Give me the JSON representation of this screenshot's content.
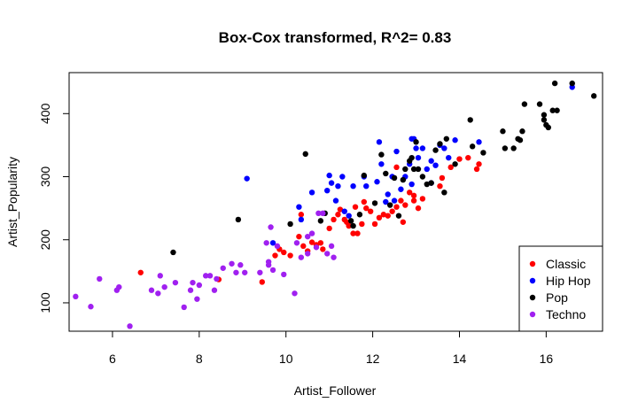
{
  "chart_data": {
    "type": "scatter",
    "title": "Box-Cox transformed, R^2= 0.83",
    "xlabel": "Artist_Follower",
    "ylabel": "Artist_Popularity",
    "xlim": [
      5,
      17.3
    ],
    "ylim": [
      55,
      465
    ],
    "xticks": [
      6,
      8,
      10,
      12,
      14,
      16
    ],
    "yticks": [
      100,
      200,
      300,
      400
    ],
    "grid": false,
    "legend_position": "bottom-right",
    "series": [
      {
        "name": "Classic",
        "color": "#ff0000",
        "points": [
          [
            6.65,
            148
          ],
          [
            8.45,
            137
          ],
          [
            9.45,
            133
          ],
          [
            9.75,
            175
          ],
          [
            9.85,
            185
          ],
          [
            9.95,
            180
          ],
          [
            10.1,
            175
          ],
          [
            10.3,
            205
          ],
          [
            10.4,
            190
          ],
          [
            10.5,
            182
          ],
          [
            10.6,
            196
          ],
          [
            10.7,
            192
          ],
          [
            10.8,
            195
          ],
          [
            10.85,
            185
          ],
          [
            11.1,
            232
          ],
          [
            11.2,
            240
          ],
          [
            11.25,
            248
          ],
          [
            11.35,
            232
          ],
          [
            11.45,
            222
          ],
          [
            11.55,
            210
          ],
          [
            11.65,
            210
          ],
          [
            11.75,
            225
          ],
          [
            11.85,
            250
          ],
          [
            11.95,
            245
          ],
          [
            12.05,
            225
          ],
          [
            12.15,
            235
          ],
          [
            12.25,
            240
          ],
          [
            12.35,
            238
          ],
          [
            12.45,
            245
          ],
          [
            12.55,
            252
          ],
          [
            12.65,
            262
          ],
          [
            12.75,
            255
          ],
          [
            12.85,
            275
          ],
          [
            12.95,
            270
          ],
          [
            13.05,
            250
          ],
          [
            13.15,
            265
          ],
          [
            12.55,
            315
          ],
          [
            13.55,
            285
          ],
          [
            13.8,
            315
          ],
          [
            14.0,
            328
          ],
          [
            14.2,
            330
          ],
          [
            14.4,
            312
          ],
          [
            14.45,
            320
          ],
          [
            11.6,
            252
          ],
          [
            11.8,
            260
          ],
          [
            10.35,
            240
          ],
          [
            12.95,
            262
          ],
          [
            11.0,
            218
          ],
          [
            11.4,
            228
          ],
          [
            12.7,
            228
          ],
          [
            13.6,
            298
          ]
        ]
      },
      {
        "name": "Hip Hop",
        "color": "#0000ff",
        "points": [
          [
            9.1,
            297
          ],
          [
            9.7,
            195
          ],
          [
            10.3,
            252
          ],
          [
            10.35,
            232
          ],
          [
            10.6,
            275
          ],
          [
            10.95,
            278
          ],
          [
            11.0,
            302
          ],
          [
            11.05,
            290
          ],
          [
            11.2,
            285
          ],
          [
            11.3,
            300
          ],
          [
            11.35,
            245
          ],
          [
            11.45,
            238
          ],
          [
            11.55,
            285
          ],
          [
            11.8,
            300
          ],
          [
            11.85,
            285
          ],
          [
            12.1,
            292
          ],
          [
            12.15,
            355
          ],
          [
            12.2,
            320
          ],
          [
            12.35,
            272
          ],
          [
            12.45,
            300
          ],
          [
            12.55,
            340
          ],
          [
            12.65,
            280
          ],
          [
            12.75,
            300
          ],
          [
            12.85,
            320
          ],
          [
            12.9,
            360
          ],
          [
            12.95,
            360
          ],
          [
            13.0,
            345
          ],
          [
            13.05,
            330
          ],
          [
            13.15,
            345
          ],
          [
            13.25,
            312
          ],
          [
            13.35,
            325
          ],
          [
            13.45,
            318
          ],
          [
            13.55,
            350
          ],
          [
            13.65,
            345
          ],
          [
            13.75,
            330
          ],
          [
            13.9,
            358
          ],
          [
            12.5,
            262
          ],
          [
            12.9,
            288
          ],
          [
            13.35,
            290
          ],
          [
            16.6,
            442
          ],
          [
            14.45,
            355
          ],
          [
            12.3,
            260
          ],
          [
            11.15,
            262
          ]
        ]
      },
      {
        "name": "Pop",
        "color": "#000000",
        "points": [
          [
            7.4,
            180
          ],
          [
            8.9,
            232
          ],
          [
            10.1,
            225
          ],
          [
            10.45,
            336
          ],
          [
            10.9,
            242
          ],
          [
            11.5,
            230
          ],
          [
            11.55,
            222
          ],
          [
            11.7,
            240
          ],
          [
            11.8,
            302
          ],
          [
            12.05,
            258
          ],
          [
            12.2,
            335
          ],
          [
            12.4,
            255
          ],
          [
            12.5,
            298
          ],
          [
            12.7,
            295
          ],
          [
            12.75,
            312
          ],
          [
            12.85,
            325
          ],
          [
            12.95,
            312
          ],
          [
            13.05,
            312
          ],
          [
            13.15,
            300
          ],
          [
            13.25,
            288
          ],
          [
            13.35,
            290
          ],
          [
            13.45,
            342
          ],
          [
            13.55,
            352
          ],
          [
            13.65,
            275
          ],
          [
            13.7,
            360
          ],
          [
            13.9,
            320
          ],
          [
            14.25,
            390
          ],
          [
            14.55,
            338
          ],
          [
            15.0,
            372
          ],
          [
            15.05,
            345
          ],
          [
            15.25,
            345
          ],
          [
            15.35,
            360
          ],
          [
            15.4,
            358
          ],
          [
            15.45,
            372
          ],
          [
            15.5,
            415
          ],
          [
            15.95,
            390
          ],
          [
            16.0,
            382
          ],
          [
            16.05,
            378
          ],
          [
            16.15,
            405
          ],
          [
            16.2,
            448
          ],
          [
            16.25,
            405
          ],
          [
            16.6,
            448
          ],
          [
            17.1,
            428
          ],
          [
            15.85,
            415
          ],
          [
            15.95,
            398
          ],
          [
            12.6,
            238
          ],
          [
            13.0,
            355
          ],
          [
            12.9,
            330
          ],
          [
            14.3,
            348
          ],
          [
            12.3,
            305
          ],
          [
            10.8,
            230
          ]
        ]
      },
      {
        "name": "Techno",
        "color": "#a020f0",
        "points": [
          [
            5.15,
            110
          ],
          [
            5.5,
            94
          ],
          [
            5.7,
            138
          ],
          [
            6.1,
            120
          ],
          [
            6.15,
            125
          ],
          [
            6.4,
            63
          ],
          [
            6.9,
            120
          ],
          [
            7.05,
            115
          ],
          [
            7.1,
            143
          ],
          [
            7.2,
            125
          ],
          [
            7.45,
            132
          ],
          [
            7.65,
            93
          ],
          [
            7.8,
            120
          ],
          [
            7.85,
            132
          ],
          [
            7.95,
            106
          ],
          [
            8.0,
            128
          ],
          [
            8.15,
            143
          ],
          [
            8.25,
            143
          ],
          [
            8.35,
            120
          ],
          [
            8.55,
            155
          ],
          [
            8.75,
            162
          ],
          [
            8.85,
            148
          ],
          [
            8.95,
            160
          ],
          [
            9.05,
            148
          ],
          [
            9.4,
            148
          ],
          [
            9.55,
            195
          ],
          [
            9.6,
            165
          ],
          [
            9.65,
            220
          ],
          [
            9.7,
            152
          ],
          [
            9.8,
            190
          ],
          [
            9.95,
            145
          ],
          [
            10.2,
            115
          ],
          [
            10.25,
            195
          ],
          [
            10.35,
            172
          ],
          [
            10.5,
            178
          ],
          [
            10.6,
            210
          ],
          [
            10.7,
            188
          ],
          [
            10.85,
            242
          ],
          [
            10.95,
            178
          ],
          [
            11.05,
            190
          ],
          [
            11.1,
            172
          ],
          [
            10.75,
            242
          ],
          [
            9.6,
            160
          ],
          [
            8.4,
            138
          ],
          [
            10.5,
            205
          ]
        ]
      }
    ]
  }
}
